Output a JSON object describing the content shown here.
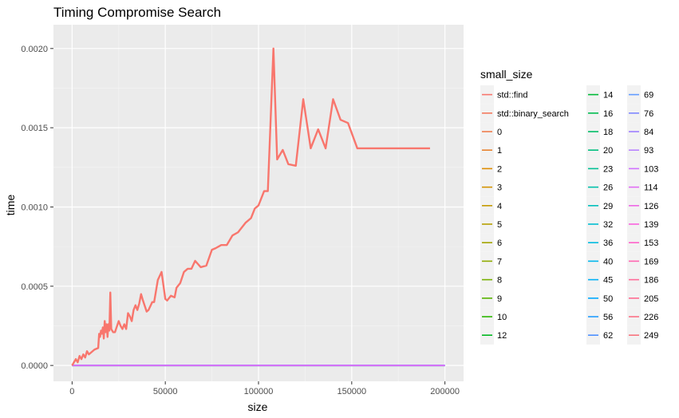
{
  "chart_data": {
    "type": "line",
    "title": "Timing Compromise Search",
    "xlabel": "size",
    "ylabel": "time",
    "xlim": [
      -10000,
      210000
    ],
    "ylim": [
      -0.0001,
      0.00215
    ],
    "xticks": [
      0,
      50000,
      100000,
      150000,
      200000
    ],
    "xtick_labels": [
      "0",
      "50000",
      "100000",
      "150000",
      "200000"
    ],
    "yticks": [
      0,
      0.0005,
      0.001,
      0.0015,
      0.002
    ],
    "ytick_labels": [
      "0.0000",
      "0.0005",
      "0.0010",
      "0.0015",
      "0.0020"
    ],
    "grid": true,
    "background": "#ebebeb",
    "legend": {
      "title": "small_size",
      "position": "right",
      "entries": [
        {
          "label": "std::find",
          "color": "#F8766D"
        },
        {
          "label": "std::binary_search",
          "color": "#F47A5E"
        },
        {
          "label": "0",
          "color": "#EE7D4C"
        },
        {
          "label": "1",
          "color": "#E8822E"
        },
        {
          "label": "2",
          "color": "#DE8C00"
        },
        {
          "label": "3",
          "color": "#D39200"
        },
        {
          "label": "4",
          "color": "#C49A00"
        },
        {
          "label": "5",
          "color": "#B5A000"
        },
        {
          "label": "6",
          "color": "#A3A500"
        },
        {
          "label": "7",
          "color": "#8FAA00"
        },
        {
          "label": "8",
          "color": "#77AF00"
        },
        {
          "label": "9",
          "color": "#57B400"
        },
        {
          "label": "10",
          "color": "#2BB600"
        },
        {
          "label": "12",
          "color": "#00B81F"
        },
        {
          "label": "14",
          "color": "#00BA38"
        },
        {
          "label": "16",
          "color": "#00BC4F"
        },
        {
          "label": "18",
          "color": "#00BE67"
        },
        {
          "label": "20",
          "color": "#00BF7D"
        },
        {
          "label": "23",
          "color": "#00C094"
        },
        {
          "label": "26",
          "color": "#00C0A9"
        },
        {
          "label": "29",
          "color": "#00BFBC"
        },
        {
          "label": "32",
          "color": "#00BDD0"
        },
        {
          "label": "36",
          "color": "#00BBE0"
        },
        {
          "label": "40",
          "color": "#00B7EC"
        },
        {
          "label": "45",
          "color": "#00B0F6"
        },
        {
          "label": "50",
          "color": "#00A8FF"
        },
        {
          "label": "56",
          "color": "#209CFF"
        },
        {
          "label": "62",
          "color": "#4D90FF"
        },
        {
          "label": "69",
          "color": "#619CFF"
        },
        {
          "label": "76",
          "color": "#7F88FF"
        },
        {
          "label": "84",
          "color": "#9E7EFF"
        },
        {
          "label": "93",
          "color": "#B983FF"
        },
        {
          "label": "103",
          "color": "#D070FF"
        },
        {
          "label": "114",
          "color": "#E16CF4"
        },
        {
          "label": "126",
          "color": "#EE66E6"
        },
        {
          "label": "139",
          "color": "#F962DD"
        },
        {
          "label": "153",
          "color": "#FF61C9"
        },
        {
          "label": "169",
          "color": "#FF64B0"
        },
        {
          "label": "186",
          "color": "#FF6A98"
        },
        {
          "label": "205",
          "color": "#FF6C91"
        },
        {
          "label": "226",
          "color": "#FC6F86"
        },
        {
          "label": "249",
          "color": "#F8737D"
        }
      ]
    },
    "series": [
      {
        "color": "#F8766D",
        "emphasis": true,
        "x": [
          0,
          1000,
          2000,
          3000,
          4000,
          5000,
          6000,
          7000,
          8000,
          9000,
          10000,
          12000,
          14000,
          14500,
          15000,
          15500,
          16000,
          16500,
          17000,
          17500,
          18000,
          18500,
          19000,
          19500,
          20000,
          20500,
          21000,
          22000,
          23000,
          25000,
          26000,
          27000,
          28000,
          29000,
          30000,
          31000,
          32000,
          33000,
          34000,
          35000,
          36000,
          37000,
          38000,
          40000,
          41000,
          43000,
          44000,
          46000,
          48000,
          50000,
          51000,
          53000,
          55000,
          56000,
          58000,
          60000,
          62000,
          64000,
          66000,
          69000,
          72000,
          75000,
          77000,
          80000,
          83000,
          86000,
          89000,
          93000,
          96000,
          98000,
          100000,
          103000,
          105000,
          108000,
          110000,
          113000,
          116000,
          120000,
          124000,
          128000,
          132000,
          136000,
          140000,
          144000,
          148000,
          153000,
          158000,
          163000,
          170000,
          177000,
          184000,
          192000
        ],
        "y": [
          0.0,
          2e-05,
          4e-05,
          2e-05,
          6e-05,
          4e-05,
          7e-05,
          5e-05,
          9e-05,
          7e-05,
          8e-05,
          0.0001,
          0.00011,
          0.0002,
          0.00018,
          0.00022,
          0.0002,
          0.00024,
          0.00017,
          0.00028,
          0.00021,
          0.00026,
          0.00018,
          0.00026,
          0.00022,
          0.00046,
          0.00023,
          0.00021,
          0.00021,
          0.00028,
          0.00025,
          0.00023,
          0.00026,
          0.00023,
          0.00033,
          0.00031,
          0.00028,
          0.00035,
          0.00038,
          0.00035,
          0.00039,
          0.00045,
          0.00041,
          0.00034,
          0.00035,
          0.0004,
          0.0004,
          0.00054,
          0.00059,
          0.00042,
          0.00041,
          0.00044,
          0.00043,
          0.00049,
          0.00052,
          0.00059,
          0.00061,
          0.00061,
          0.00066,
          0.00062,
          0.00063,
          0.00073,
          0.00074,
          0.00076,
          0.00076,
          0.00082,
          0.00084,
          0.0009,
          0.00093,
          0.00099,
          0.00101,
          0.0011,
          0.0011,
          0.002,
          0.0013,
          0.00136,
          0.00127,
          0.00126,
          0.00168,
          0.00137,
          0.00149,
          0.00137,
          0.00168,
          0.00155,
          0.00153,
          0.00137,
          0.00137,
          0.00137,
          0.00137,
          0.00137,
          0.00137,
          0.00137
        ]
      }
    ]
  }
}
